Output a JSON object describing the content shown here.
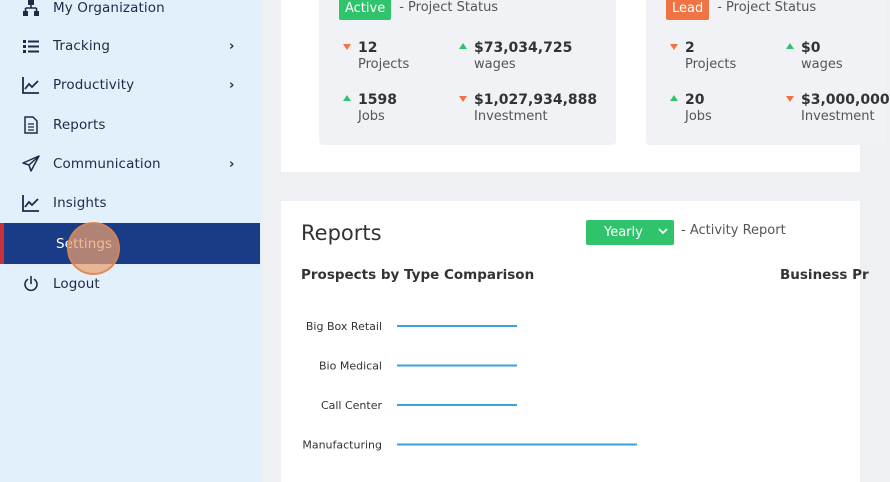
{
  "sidebar": {
    "items": [
      {
        "label": "My Organization",
        "icon": "org-chart-icon",
        "chevron": ""
      },
      {
        "label": "Tracking",
        "icon": "list-icon",
        "chevron": "›"
      },
      {
        "label": "Productivity",
        "icon": "chart-line-icon",
        "chevron": "›"
      },
      {
        "label": "Reports",
        "icon": "document-icon",
        "chevron": ""
      },
      {
        "label": "Communication",
        "icon": "paper-plane-icon",
        "chevron": "›"
      },
      {
        "label": "Insights",
        "icon": "chart-line-icon",
        "chevron": ""
      },
      {
        "label": "Settings",
        "icon": "",
        "chevron": ""
      },
      {
        "label": "Logout",
        "icon": "power-icon",
        "chevron": ""
      }
    ],
    "active_index": 6
  },
  "cards": [
    {
      "badge": "Active",
      "status": "- Project Status",
      "metrics": [
        {
          "value": "12",
          "label": "Projects",
          "trend": "down"
        },
        {
          "value": "$73,034,725",
          "label": "wages",
          "trend": "up"
        },
        {
          "value": "1598",
          "label": "Jobs",
          "trend": "up"
        },
        {
          "value": "$1,027,934,888",
          "label": "Investment",
          "trend": "down"
        }
      ]
    },
    {
      "badge": "Lead",
      "status": "- Project Status",
      "metrics": [
        {
          "value": "2",
          "label": "Projects",
          "trend": "down"
        },
        {
          "value": "$0",
          "label": "wages",
          "trend": "up"
        },
        {
          "value": "20",
          "label": "Jobs",
          "trend": "up"
        },
        {
          "value": "$3,000,000",
          "label": "Investment",
          "trend": "down"
        }
      ]
    }
  ],
  "reports": {
    "title": "Reports",
    "period_select": "Yearly",
    "activity_label": "- Activity Report",
    "chart_title": "Prospects by Type Comparison",
    "chart2_title": "Business Pr"
  },
  "colors": {
    "sidebar_bg": "#e2f0fc",
    "active_nav": "#1a3c86",
    "green": "#2fc46b",
    "orange": "#f07443",
    "bar_line": "#3aa3dc"
  },
  "chart_data": {
    "type": "bar",
    "orientation": "horizontal",
    "title": "Prospects by Type Comparison",
    "categories": [
      "Big Box Retail",
      "Bio Medical",
      "Call Center",
      "Manufacturing"
    ],
    "values": [
      1,
      1,
      1,
      2
    ],
    "xlim": [
      0,
      3
    ]
  }
}
